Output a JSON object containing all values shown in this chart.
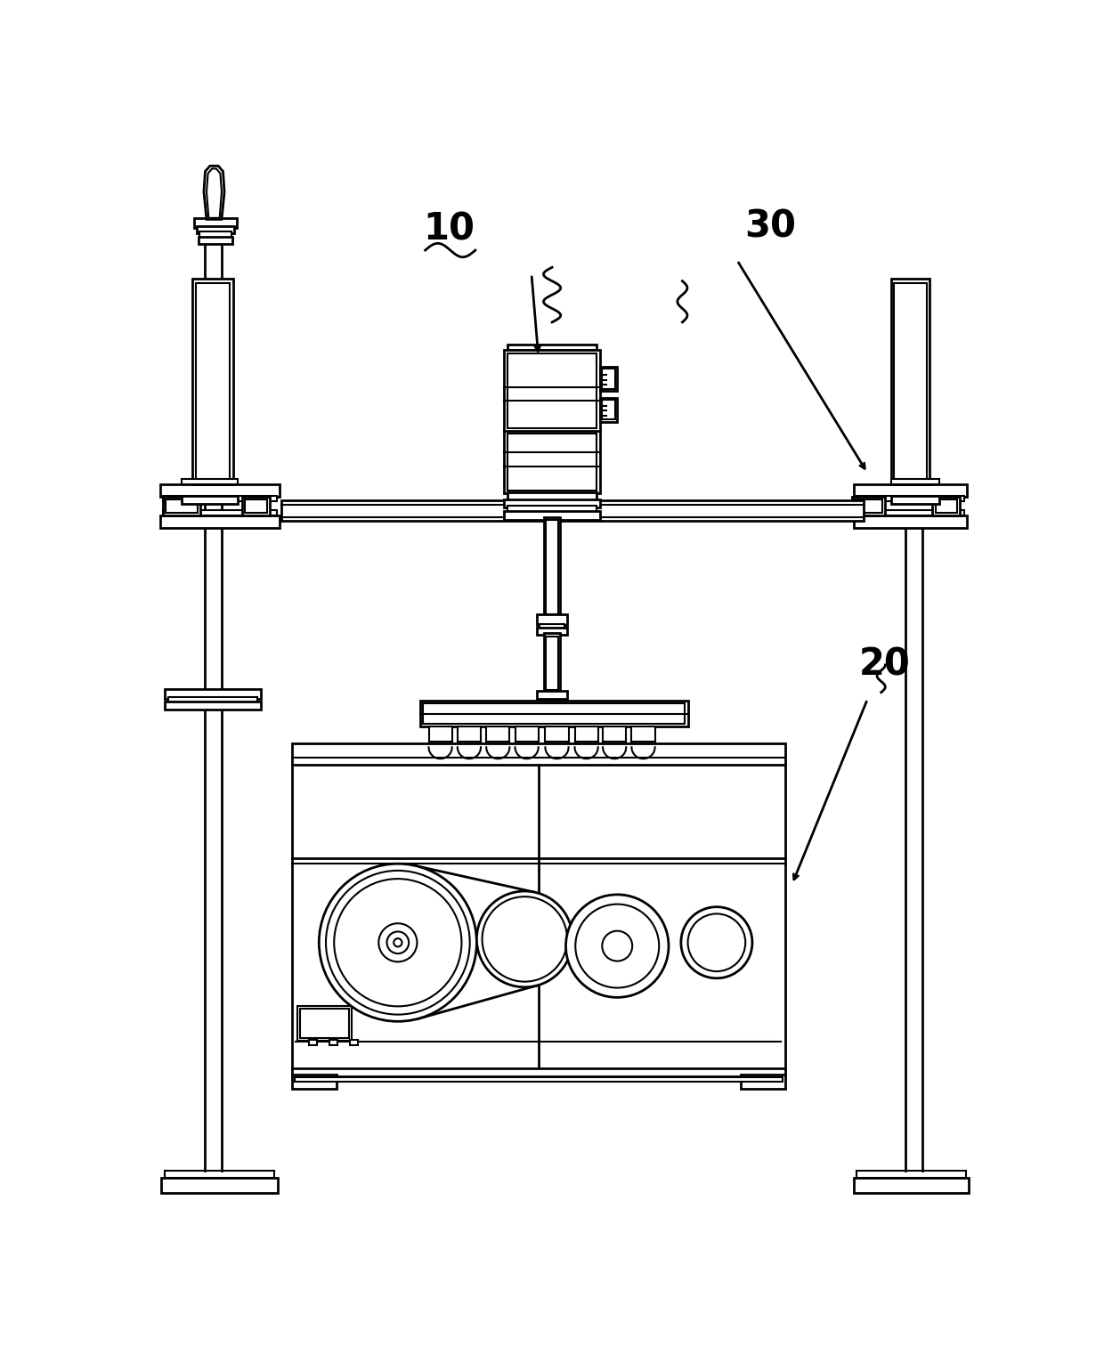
{
  "bg": "#ffffff",
  "lc": "#000000",
  "lw": 1.5,
  "lw2": 2.0,
  "lw3": 2.5
}
